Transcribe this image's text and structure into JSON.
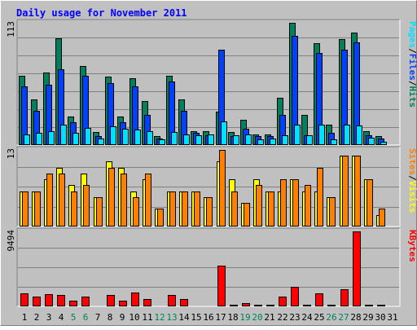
{
  "chart_data": [
    {
      "type": "bar",
      "title": "Daily usage for November 2011",
      "panel": "hits-files-pages",
      "ylabel_parts": [
        "Pages",
        "/",
        "Files",
        "/",
        "Hits"
      ],
      "ymax_label": "113",
      "ymax": 113,
      "categories": [
        "1",
        "2",
        "3",
        "4",
        "5",
        "6",
        "7",
        "8",
        "9",
        "10",
        "11",
        "12",
        "13",
        "14",
        "15",
        "16",
        "17",
        "18",
        "19",
        "20",
        "21",
        "22",
        "23",
        "24",
        "25",
        "26",
        "27",
        "28",
        "29",
        "30",
        "31"
      ],
      "series": [
        {
          "name": "Hits",
          "color": "#00805c",
          "values": [
            64,
            42,
            67,
            99,
            26,
            73,
            12,
            63,
            26,
            62,
            41,
            8,
            64,
            42,
            13,
            13,
            31,
            12,
            23,
            10,
            10,
            44,
            113,
            28,
            94,
            19,
            98,
            104,
            13,
            8,
            0
          ]
        },
        {
          "name": "Files",
          "color": "#0040ff",
          "values": [
            54,
            32,
            56,
            70,
            21,
            64,
            8,
            57,
            21,
            54,
            28,
            6,
            59,
            32,
            11,
            9,
            88,
            8,
            15,
            8,
            8,
            28,
            101,
            9,
            85,
            11,
            88,
            95,
            9,
            6,
            0
          ]
        },
        {
          "name": "Pages",
          "color": "#00e0ff",
          "values": [
            10,
            11,
            13,
            19,
            11,
            16,
            6,
            17,
            15,
            14,
            13,
            5,
            12,
            10,
            9,
            10,
            22,
            9,
            10,
            5,
            6,
            9,
            19,
            9,
            19,
            5,
            19,
            18,
            7,
            3,
            0
          ]
        }
      ]
    },
    {
      "type": "bar",
      "panel": "visits-sites",
      "ylabel_parts": [
        "Sites",
        "/",
        "Visits"
      ],
      "ymax_label": "13",
      "ymax": 13,
      "categories": [
        "1",
        "2",
        "3",
        "4",
        "5",
        "6",
        "7",
        "8",
        "9",
        "10",
        "11",
        "12",
        "13",
        "14",
        "15",
        "16",
        "17",
        "18",
        "19",
        "20",
        "21",
        "22",
        "23",
        "24",
        "25",
        "26",
        "27",
        "28",
        "29",
        "30",
        "31"
      ],
      "series": [
        {
          "name": "Visits",
          "color": "#ffff00",
          "values": [
            6,
            6,
            8,
            10,
            7,
            9,
            5,
            11,
            10,
            6,
            8,
            3,
            6,
            6,
            6,
            5,
            11,
            8,
            4,
            8,
            6,
            6,
            8,
            6,
            6,
            5,
            12,
            12,
            8,
            2,
            0
          ]
        },
        {
          "name": "Sites",
          "color": "#ff8000",
          "values": [
            6,
            6,
            9,
            9,
            6,
            7,
            5,
            10,
            9,
            5,
            9,
            3,
            6,
            6,
            6,
            5,
            13,
            6,
            4,
            7,
            6,
            8,
            8,
            7,
            10,
            5,
            12,
            12,
            8,
            3,
            0
          ]
        }
      ]
    },
    {
      "type": "bar",
      "panel": "kbytes",
      "ylabel_parts": [
        "KBytes"
      ],
      "ymax_label": "9494",
      "ymax": 9494,
      "categories": [
        "1",
        "2",
        "3",
        "4",
        "5",
        "6",
        "7",
        "8",
        "9",
        "10",
        "11",
        "12",
        "13",
        "14",
        "15",
        "16",
        "17",
        "18",
        "19",
        "20",
        "21",
        "22",
        "23",
        "24",
        "25",
        "26",
        "27",
        "28",
        "29",
        "30",
        "31"
      ],
      "series": [
        {
          "name": "KBytes",
          "color": "#ff0000",
          "values": [
            1700,
            1200,
            1500,
            1400,
            700,
            1200,
            0,
            1400,
            700,
            1800,
            900,
            0,
            1400,
            900,
            0,
            0,
            5200,
            200,
            400,
            200,
            200,
            1200,
            2500,
            200,
            1600,
            200,
            2200,
            9494,
            200,
            200,
            0
          ]
        }
      ]
    }
  ],
  "xaxis": {
    "label_color": "#000000",
    "weekend_color": "#00805c",
    "weekend_days": [
      "5",
      "6",
      "12",
      "13",
      "19",
      "20",
      "26",
      "27"
    ]
  },
  "colors": {
    "background": "#c0c0c0",
    "frame_light": "#ffffff",
    "frame_dark": "#808080",
    "title": "#0000ff",
    "gridline": "#808080"
  }
}
